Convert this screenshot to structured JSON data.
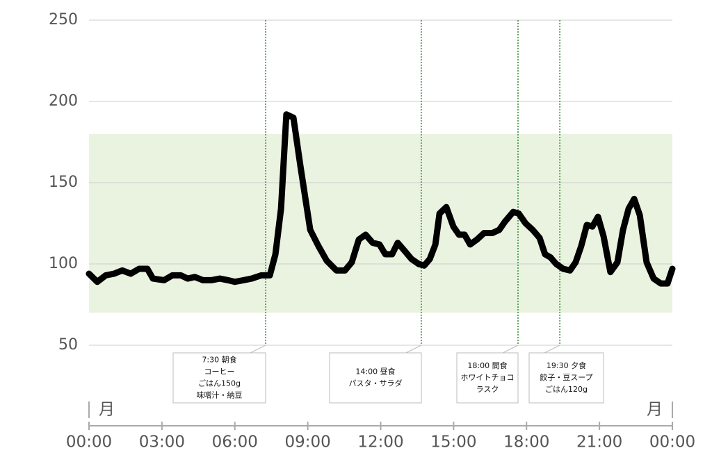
{
  "chart_data": {
    "type": "line",
    "x": [
      0,
      0.34,
      0.69,
      1.03,
      1.37,
      1.72,
      2.06,
      2.4,
      2.63,
      3.09,
      3.43,
      3.78,
      4.06,
      4.35,
      4.69,
      5.03,
      5.38,
      5.72,
      6.0,
      6.35,
      6.69,
      7.09,
      7.44,
      7.67,
      7.9,
      8.12,
      8.41,
      8.7,
      9.1,
      9.44,
      9.78,
      10.18,
      10.53,
      10.81,
      11.1,
      11.38,
      11.67,
      11.95,
      12.19,
      12.47,
      12.7,
      12.99,
      13.27,
      13.56,
      13.79,
      14.02,
      14.25,
      14.42,
      14.7,
      14.99,
      15.22,
      15.45,
      15.68,
      15.96,
      16.25,
      16.59,
      16.88,
      17.11,
      17.45,
      17.68,
      17.96,
      18.25,
      18.54,
      18.76,
      18.99,
      19.22,
      19.51,
      19.79,
      20.02,
      20.25,
      20.48,
      20.71,
      20.94,
      21.17,
      21.45,
      21.74,
      21.97,
      22.2,
      22.43,
      22.66,
      22.94,
      23.23,
      23.52,
      23.8,
      24
    ],
    "series": [
      {
        "color": "#000000",
        "values": [
          94,
          89,
          93,
          94,
          96,
          94,
          97,
          97,
          91,
          90,
          93,
          93,
          91,
          92,
          90,
          90,
          91,
          90,
          89,
          90,
          91,
          93,
          93,
          106,
          134,
          192,
          190,
          160,
          121,
          111,
          102,
          96,
          96,
          101,
          115,
          118,
          113,
          112,
          106,
          106,
          113,
          108,
          103,
          100,
          99,
          103,
          112,
          131,
          135,
          123,
          118,
          118,
          112,
          115,
          119,
          119,
          121,
          126,
          132,
          131,
          125,
          121,
          116,
          106,
          104,
          100,
          97,
          96,
          101,
          111,
          124,
          123,
          129,
          117,
          95,
          101,
          121,
          134,
          140,
          130,
          101,
          91,
          88,
          88,
          97
        ]
      }
    ],
    "xlim": [
      0,
      24
    ],
    "xticks": [
      {
        "value": 0,
        "label": "00:00"
      },
      {
        "value": 3,
        "label": "03:00"
      },
      {
        "value": 6,
        "label": "06:00"
      },
      {
        "value": 9,
        "label": "09:00"
      },
      {
        "value": 12,
        "label": "12:00"
      },
      {
        "value": 15,
        "label": "15:00"
      },
      {
        "value": 18,
        "label": "18:00"
      },
      {
        "value": 21,
        "label": "21:00"
      },
      {
        "value": 24,
        "label": "00:00"
      }
    ],
    "ylim": [
      50,
      250
    ],
    "yticks": [
      50,
      100,
      150,
      200,
      250
    ],
    "grid": true,
    "target_band": {
      "range": [
        70,
        180
      ],
      "color": "#eaf3e0"
    },
    "day_labels": [
      "月",
      "月"
    ],
    "annotations": [
      {
        "x": 7.27,
        "lines": [
          "7:30 朝食",
          "コーヒー",
          "ごはん150g",
          "味噌汁・納豆"
        ]
      },
      {
        "x": 13.67,
        "lines": [
          "14:00 昼食",
          "パスタ・サラダ"
        ]
      },
      {
        "x": 17.65,
        "lines": [
          "18:00 間食",
          "ホワイトチョコ",
          "ラスク"
        ]
      },
      {
        "x": 19.37,
        "lines": [
          "19:30 夕食",
          "餃子・豆スープ",
          "ごはん120g"
        ]
      }
    ]
  }
}
